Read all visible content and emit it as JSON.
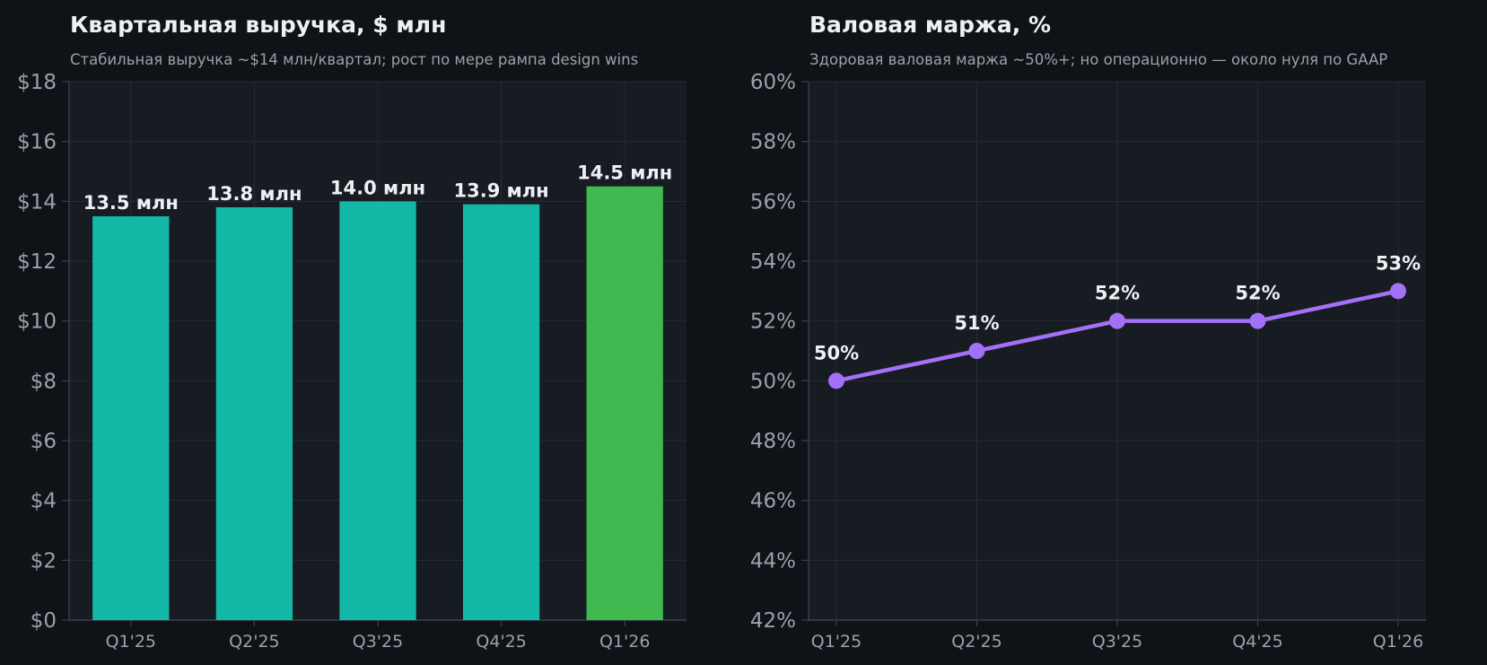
{
  "chart_data": [
    {
      "type": "bar",
      "title": "Квартальная выручка, $ млн",
      "subtitle": "Стабильная выручка ~$14 млн/квартал; рост по мере рампа design wins",
      "categories": [
        "Q1'25",
        "Q2'25",
        "Q3'25",
        "Q4'25",
        "Q1'26"
      ],
      "values": [
        13.5,
        13.8,
        14.0,
        13.9,
        14.5
      ],
      "data_labels": [
        "13.5 млн",
        "13.8 млн",
        "14.0 млн",
        "13.9 млн",
        "14.5 млн"
      ],
      "ylim": [
        0,
        18
      ],
      "yticks": [
        0,
        2,
        4,
        6,
        8,
        10,
        12,
        14,
        16,
        18
      ],
      "ytick_labels": [
        "$0",
        "$2",
        "$4",
        "$6",
        "$8",
        "$10",
        "$12",
        "$14",
        "$16",
        "$18"
      ],
      "bar_colors": [
        "#14b8a6",
        "#14b8a6",
        "#14b8a6",
        "#14b8a6",
        "#3fb950"
      ],
      "grid": true
    },
    {
      "type": "line",
      "title": "Валовая маржа, %",
      "subtitle": "Здоровая валовая маржа ~50%+; но операционно — около нуля по GAAP",
      "categories": [
        "Q1'25",
        "Q2'25",
        "Q3'25",
        "Q4'25",
        "Q1'26"
      ],
      "values": [
        50,
        51,
        52,
        52,
        53
      ],
      "data_labels": [
        "50%",
        "51%",
        "52%",
        "52%",
        "53%"
      ],
      "ylim": [
        42,
        60
      ],
      "yticks": [
        42,
        44,
        46,
        48,
        50,
        52,
        54,
        56,
        58,
        60
      ],
      "ytick_labels": [
        "42%",
        "44%",
        "46%",
        "48%",
        "50%",
        "52%",
        "54%",
        "56%",
        "58%",
        "60%"
      ],
      "line_color": "#a371f7",
      "grid": true
    }
  ],
  "colors": {
    "figure_background": "#0f1317",
    "plot_background": "#171b22",
    "grid": "#262c35",
    "axis": "#3a414b",
    "text": "#eef0f3",
    "muted_text": "#9aa1aa"
  }
}
